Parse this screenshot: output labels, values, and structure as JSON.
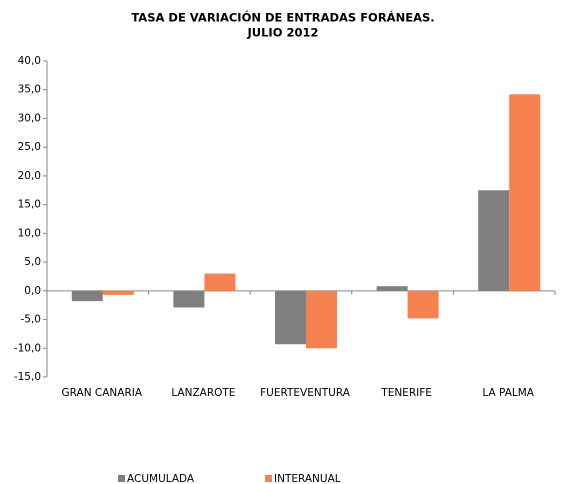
{
  "chart_data": {
    "type": "bar",
    "title_lines": [
      "TASA DE VARIACIÓN DE ENTRADAS FORÁNEAS.",
      "JULIO 2012"
    ],
    "categories": [
      "GRAN CANARIA",
      "LANZAROTE",
      "FUERTEVENTURA",
      "TENERIFE",
      "LA PALMA"
    ],
    "series": [
      {
        "name": "ACUMULADA",
        "color": "#7f7f7f",
        "values": [
          -1.8,
          -2.9,
          -9.3,
          0.8,
          17.5
        ]
      },
      {
        "name": "INTERANUAL",
        "color": "#f58150",
        "values": [
          -0.7,
          3.0,
          -10.0,
          -4.8,
          34.2
        ]
      }
    ],
    "ylim": [
      -15,
      40
    ],
    "yticks": [
      {
        "value": -15,
        "label": "-15,0"
      },
      {
        "value": -10,
        "label": "-10,0"
      },
      {
        "value": -5,
        "label": "-5,0"
      },
      {
        "value": 0,
        "label": "0,0"
      },
      {
        "value": 5,
        "label": "5,0"
      },
      {
        "value": 10,
        "label": "10,0"
      },
      {
        "value": 15,
        "label": "15,0"
      },
      {
        "value": 20,
        "label": "20,0"
      },
      {
        "value": 25,
        "label": "25,0"
      },
      {
        "value": 30,
        "label": "30,0"
      },
      {
        "value": 35,
        "label": "35,0"
      },
      {
        "value": 40,
        "label": "40,0"
      }
    ],
    "grid": false,
    "legend": "bottom"
  }
}
